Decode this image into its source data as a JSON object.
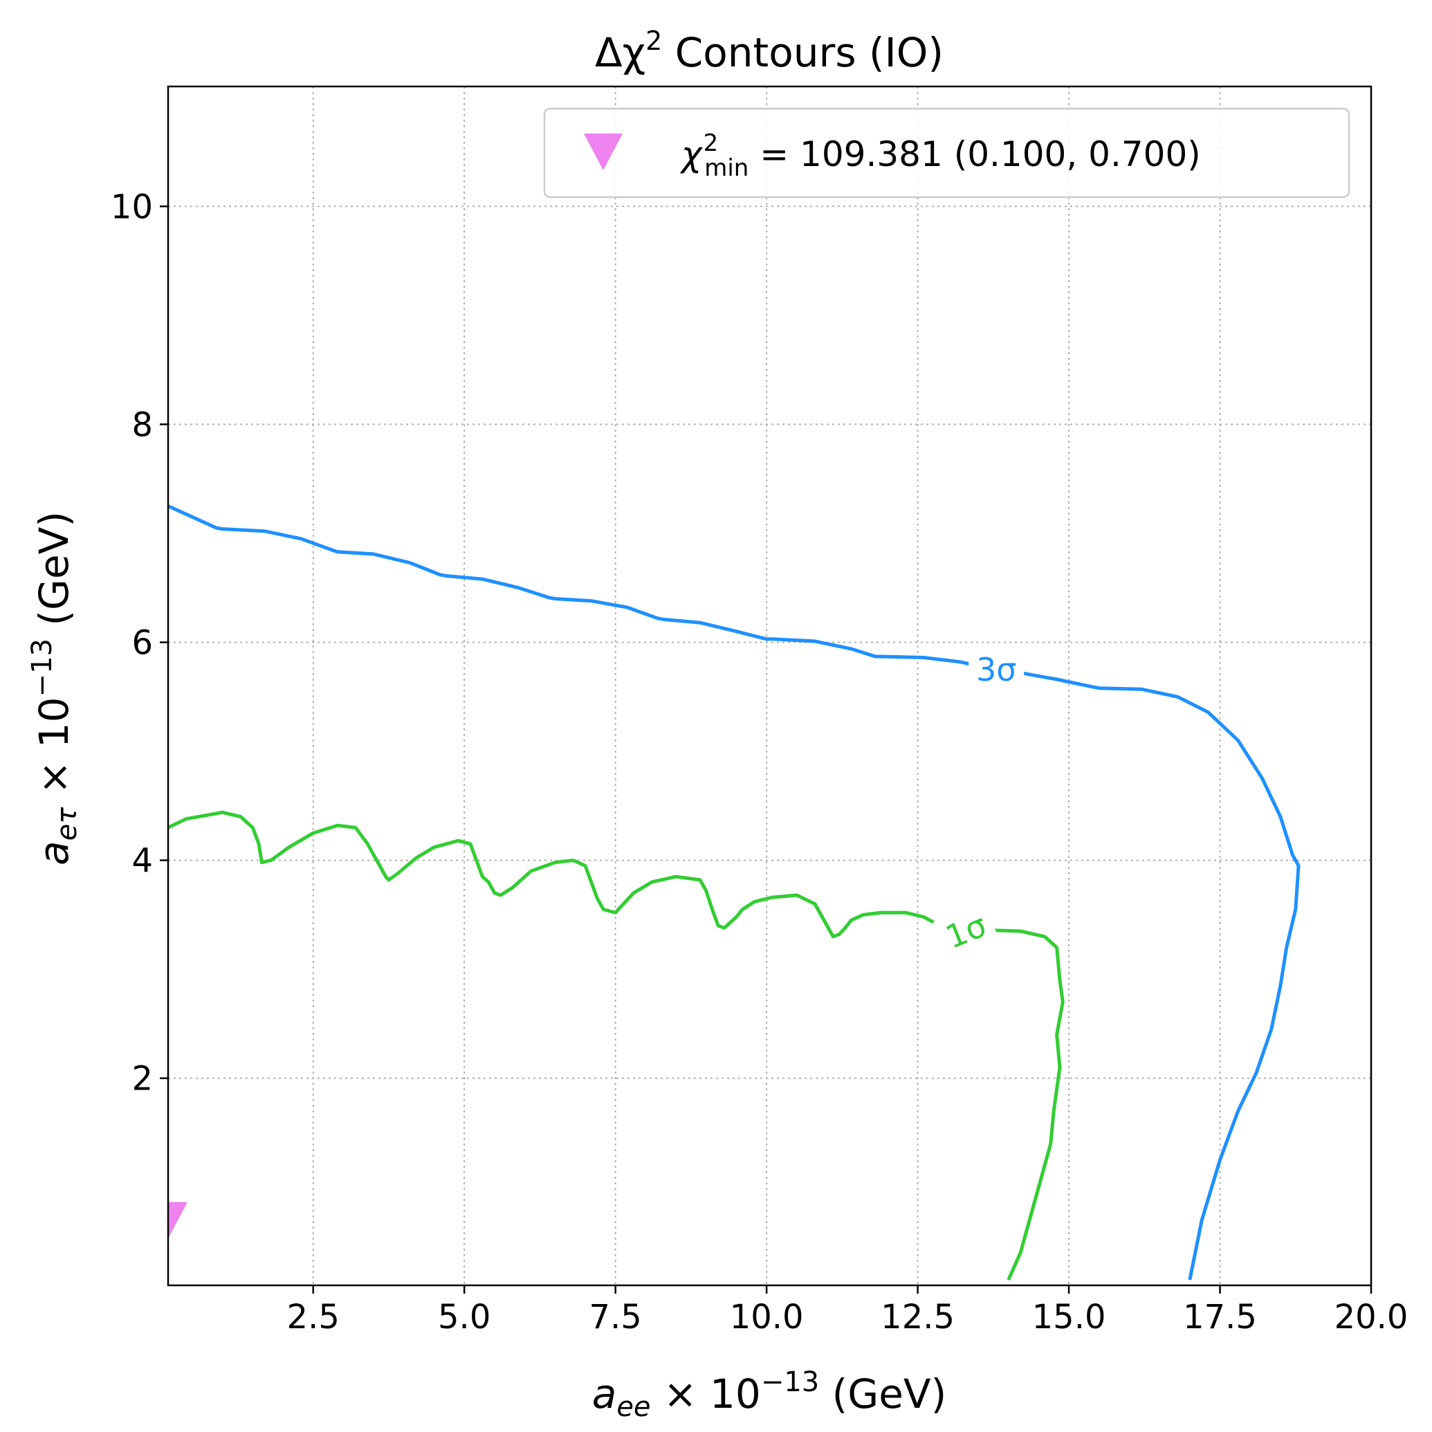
{
  "chart_data": {
    "type": "line",
    "title": {
      "prefix": "Δχ",
      "sup": "2",
      "suffix": " Contours (IO)"
    },
    "xlabel": {
      "var": "a",
      "sub": "ee",
      "mid": " × 10",
      "sup": "−13",
      "unit": " (GeV)"
    },
    "ylabel": {
      "var": "a",
      "sub": "eτ",
      "mid": " × 10",
      "sup": "−13",
      "unit": " (GeV)"
    },
    "xlim": [
      0.1,
      20.0
    ],
    "ylim": [
      0.1,
      11.1
    ],
    "xticks": [
      2.5,
      5.0,
      7.5,
      10.0,
      12.5,
      15.0,
      17.5,
      20.0
    ],
    "xtick_labels": [
      "2.5",
      "5.0",
      "7.5",
      "10.0",
      "12.5",
      "15.0",
      "17.5",
      "20.0"
    ],
    "yticks": [
      2,
      4,
      6,
      8,
      10
    ],
    "ytick_labels": [
      "2",
      "4",
      "6",
      "8",
      "10"
    ],
    "grid": true,
    "legend_position": "top-right",
    "legend": {
      "symbol": "χ",
      "sub": "min",
      "sup": "2",
      "text": " = 109.381 (0.100, 0.700)",
      "marker": "triangle-down",
      "color": "#EE82EE"
    },
    "best_fit": {
      "x": 0.1,
      "y": 0.7
    },
    "series": [
      {
        "name": "3σ",
        "color": "#1E90FF",
        "label_at": {
          "x": 13.8,
          "y": 5.75
        },
        "x": [
          0.1,
          0.5,
          0.9,
          1.0,
          1.7,
          2.3,
          2.8,
          2.9,
          3.5,
          4.1,
          4.6,
          4.7,
          5.3,
          5.9,
          6.4,
          6.5,
          7.1,
          7.7,
          8.2,
          8.3,
          8.9,
          9.5,
          10.0,
          10.1,
          10.8,
          11.4,
          11.8,
          11.9,
          12.6,
          13.2,
          13.7,
          14.2,
          14.8,
          15.4,
          15.5,
          16.2,
          16.8,
          17.3,
          17.8,
          18.2,
          18.5,
          18.7,
          18.8,
          18.75,
          18.6,
          18.5,
          18.35,
          18.1,
          17.8,
          17.5,
          17.2,
          17.0
        ],
        "y": [
          7.25,
          7.15,
          7.05,
          7.04,
          7.02,
          6.95,
          6.85,
          6.83,
          6.81,
          6.73,
          6.62,
          6.61,
          6.58,
          6.5,
          6.41,
          6.4,
          6.38,
          6.32,
          6.22,
          6.21,
          6.18,
          6.1,
          6.03,
          6.03,
          6.01,
          5.94,
          5.87,
          5.87,
          5.86,
          5.82,
          5.76,
          5.72,
          5.66,
          5.59,
          5.58,
          5.57,
          5.5,
          5.36,
          5.1,
          4.75,
          4.4,
          4.05,
          3.95,
          3.55,
          3.2,
          2.85,
          2.45,
          2.05,
          1.7,
          1.25,
          0.7,
          0.15
        ]
      },
      {
        "name": "1σ",
        "color": "#32CD32",
        "label_at": {
          "x": 13.3,
          "y": 3.35
        },
        "x": [
          0.1,
          0.4,
          0.8,
          1.0,
          1.3,
          1.5,
          1.6,
          1.65,
          1.8,
          2.1,
          2.5,
          2.9,
          3.2,
          3.4,
          3.5,
          3.6,
          3.7,
          3.75,
          3.9,
          4.2,
          4.5,
          4.9,
          5.1,
          5.2,
          5.3,
          5.4,
          5.5,
          5.6,
          5.8,
          6.1,
          6.5,
          6.8,
          7.0,
          7.1,
          7.2,
          7.3,
          7.5,
          7.6,
          7.8,
          8.1,
          8.5,
          8.9,
          9.0,
          9.1,
          9.2,
          9.3,
          9.5,
          9.6,
          9.8,
          10.1,
          10.5,
          10.8,
          11.0,
          11.1,
          11.2,
          11.3,
          11.4,
          11.6,
          11.9,
          12.3,
          12.6,
          12.8,
          12.9,
          13.0,
          13.6,
          14.2,
          14.6,
          14.8,
          14.85,
          14.9,
          14.8,
          14.85,
          14.75,
          14.7,
          14.6,
          14.5,
          14.4,
          14.3,
          14.2,
          14.0
        ],
        "y": [
          4.3,
          4.38,
          4.42,
          4.44,
          4.4,
          4.3,
          4.15,
          3.98,
          4.0,
          4.12,
          4.25,
          4.32,
          4.3,
          4.15,
          4.05,
          3.95,
          3.85,
          3.82,
          3.88,
          4.02,
          4.12,
          4.18,
          4.15,
          4.0,
          3.85,
          3.8,
          3.7,
          3.68,
          3.75,
          3.9,
          3.98,
          4.0,
          3.95,
          3.8,
          3.65,
          3.55,
          3.52,
          3.58,
          3.7,
          3.8,
          3.85,
          3.82,
          3.72,
          3.55,
          3.4,
          3.38,
          3.48,
          3.55,
          3.62,
          3.66,
          3.68,
          3.6,
          3.4,
          3.3,
          3.32,
          3.38,
          3.45,
          3.5,
          3.52,
          3.52,
          3.48,
          3.42,
          3.38,
          3.35,
          3.36,
          3.35,
          3.3,
          3.2,
          2.9,
          2.7,
          2.4,
          2.1,
          1.7,
          1.4,
          1.2,
          1.0,
          0.8,
          0.6,
          0.4,
          0.15
        ]
      }
    ]
  }
}
